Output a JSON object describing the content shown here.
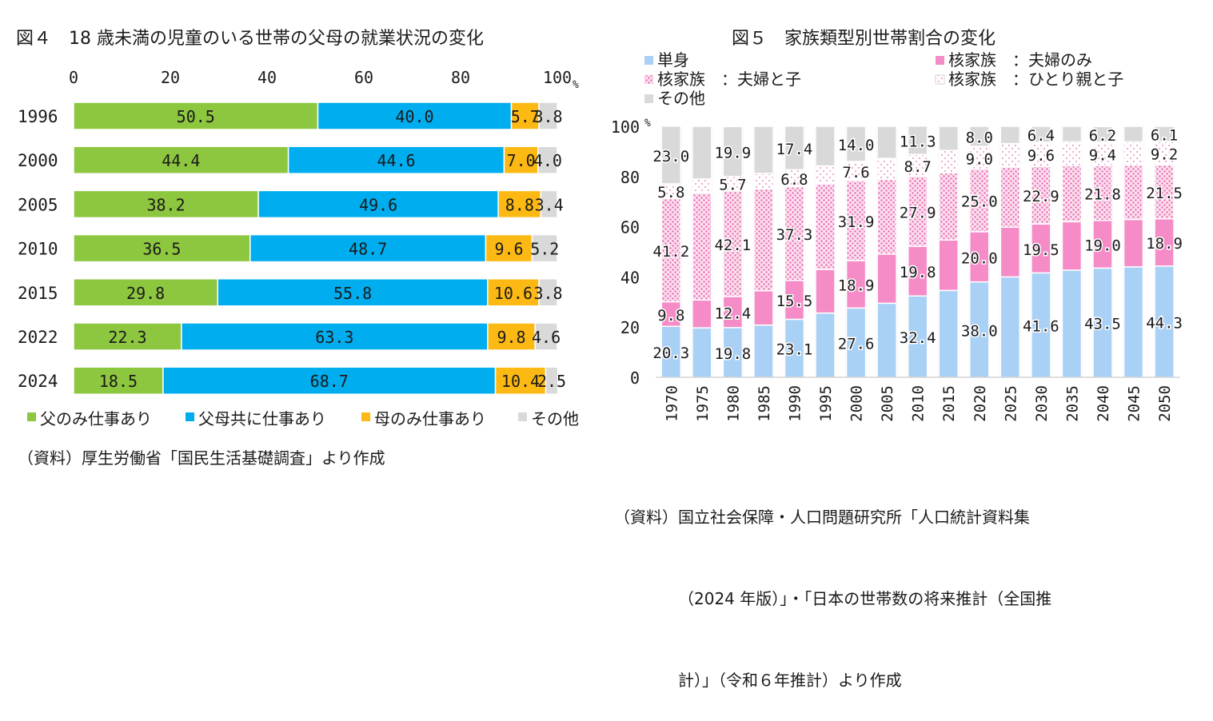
{
  "page": {
    "title_left": "図４　18 歳未満の児童のいる世帯の父母の就業状況の変化",
    "title_right": "図５　家族類型別世帯割合の変化",
    "source_left": "（資料）厚生労働省「国民生活基礎調査」より作成",
    "source_right_lines": [
      "（資料）国立社会保障・人口問題研究所「人口統計資料集",
      "（2024 年版）」・「日本の世帯数の将来推計（全国推",
      "計）」（令和６年推計）より作成"
    ]
  },
  "chart_data": [
    {
      "type": "bar",
      "orientation": "horizontal",
      "stacked": true,
      "title": "図４　18 歳未満の児童のいる世帯の父母の就業状況の変化",
      "categories": [
        "1996",
        "2000",
        "2005",
        "2010",
        "2015",
        "2022",
        "2024"
      ],
      "series": [
        {
          "name": "父のみ仕事あり",
          "color": "#8dc63f",
          "values": [
            50.5,
            44.4,
            38.2,
            36.5,
            29.8,
            22.3,
            18.5
          ]
        },
        {
          "name": "父母共に仕事あり",
          "color": "#00adef",
          "values": [
            40.0,
            44.6,
            49.6,
            48.7,
            55.8,
            63.3,
            68.7
          ]
        },
        {
          "name": "母のみ仕事あり",
          "color": "#fdb913",
          "values": [
            5.7,
            7.0,
            8.8,
            9.6,
            10.6,
            9.8,
            10.4
          ]
        },
        {
          "name": "その他",
          "color": "#d9d9d9",
          "values": [
            3.8,
            4.0,
            3.4,
            5.2,
            3.8,
            4.6,
            2.5
          ]
        }
      ],
      "xlim": [
        0,
        100
      ],
      "x_ticks": [
        "0",
        "20",
        "40",
        "60",
        "80",
        "100"
      ],
      "unit": "%",
      "legend_position": "bottom",
      "grid": false
    },
    {
      "type": "bar",
      "orientation": "vertical",
      "stacked": true,
      "title": "図５　家族類型別世帯割合の変化",
      "categories": [
        "1970",
        "1975",
        "1980",
        "1985",
        "1990",
        "1995",
        "2000",
        "2005",
        "2010",
        "2015",
        "2020",
        "2025",
        "2030",
        "2035",
        "2040",
        "2045",
        "2050"
      ],
      "series": [
        {
          "name": "単身",
          "color": "#a9d0f5",
          "pattern": "solid",
          "values": [
            20.3,
            19.7,
            19.8,
            20.8,
            23.1,
            25.6,
            27.6,
            29.5,
            32.4,
            34.6,
            38.0,
            40.0,
            41.6,
            42.7,
            43.5,
            44.0,
            44.3
          ],
          "labels": [
            "20.3",
            "",
            "19.8",
            "",
            "23.1",
            "",
            "27.6",
            "",
            "32.4",
            "",
            "38.0",
            "",
            "41.6",
            "",
            "43.5",
            "",
            "44.3"
          ]
        },
        {
          "name": "核家族　：夫婦のみ",
          "color": "#f58cc8",
          "pattern": "solid",
          "values": [
            9.8,
            11.1,
            12.4,
            13.7,
            15.5,
            17.4,
            18.9,
            19.6,
            19.8,
            20.1,
            20.0,
            19.8,
            19.5,
            19.3,
            19.0,
            18.9,
            18.9
          ],
          "labels": [
            "9.8",
            "",
            "12.4",
            "",
            "15.5",
            "",
            "18.9",
            "",
            "19.8",
            "",
            "20.0",
            "",
            "19.5",
            "",
            "19.0",
            "",
            "18.9"
          ]
        },
        {
          "name": "核家族　：夫婦と子",
          "color": "#f7a8d4",
          "pattern": "dots",
          "values": [
            41.2,
            42.6,
            42.1,
            40.6,
            37.3,
            34.1,
            31.9,
            29.8,
            27.9,
            26.8,
            25.0,
            24.0,
            22.9,
            22.3,
            21.8,
            21.6,
            21.5
          ],
          "labels": [
            "41.2",
            "",
            "42.1",
            "",
            "37.3",
            "",
            "31.9",
            "",
            "27.9",
            "",
            "25.0",
            "",
            "22.9",
            "",
            "21.8",
            "",
            "21.5"
          ]
        },
        {
          "name": "核家族　：ひとり親と子",
          "color": "#eeeeee",
          "pattern": "dots",
          "values": [
            5.8,
            5.6,
            5.7,
            6.1,
            6.8,
            7.1,
            7.6,
            8.3,
            8.7,
            8.9,
            9.0,
            9.3,
            9.6,
            9.5,
            9.4,
            9.3,
            9.2
          ],
          "labels": [
            "5.8",
            "",
            "5.7",
            "",
            "6.8",
            "",
            "7.6",
            "",
            "8.7",
            "",
            "9.0",
            "",
            "9.6",
            "",
            "9.4",
            "",
            "9.2"
          ]
        },
        {
          "name": "その他",
          "color": "#d9d9d9",
          "pattern": "solid",
          "values": [
            23.0,
            21.0,
            19.9,
            18.8,
            17.4,
            15.8,
            14.0,
            12.8,
            11.3,
            9.6,
            8.0,
            6.9,
            6.4,
            6.2,
            6.2,
            6.2,
            6.1
          ],
          "labels": [
            "23.0",
            "",
            "19.9",
            "",
            "17.4",
            "",
            "14.0",
            "",
            "11.3",
            "",
            "8.0",
            "",
            "6.4",
            "",
            "6.2",
            "",
            "6.1"
          ]
        }
      ],
      "ylim": [
        0,
        100
      ],
      "y_ticks": [
        "0",
        "20",
        "40",
        "60",
        "80",
        "100"
      ],
      "unit": "%",
      "legend_position": "top",
      "grid": false
    }
  ]
}
